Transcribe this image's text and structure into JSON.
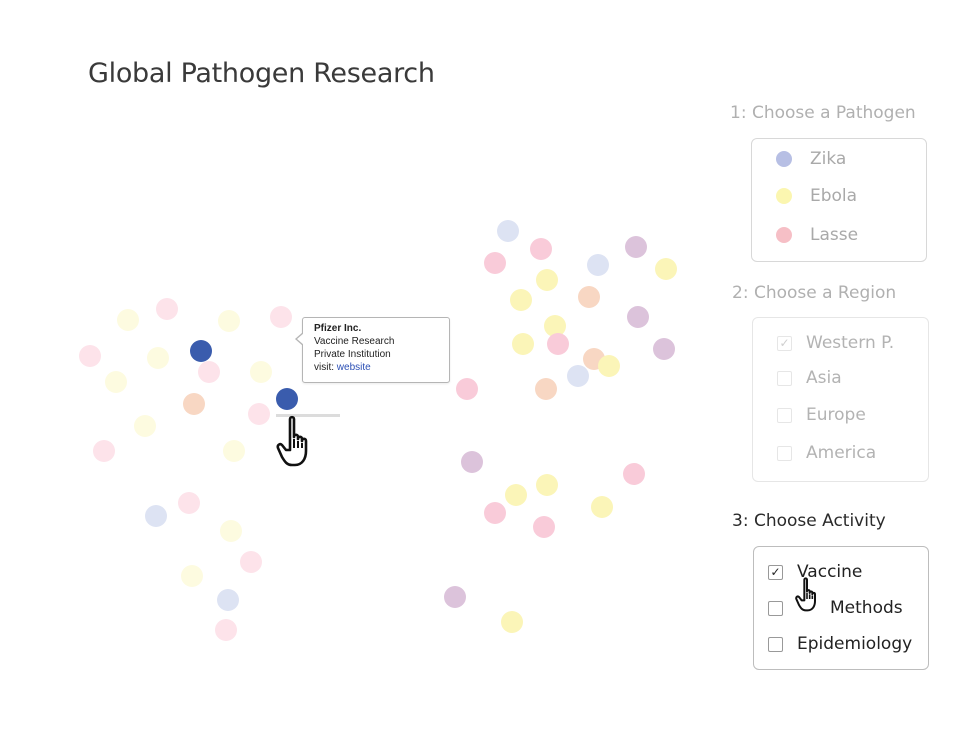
{
  "title": "Global Pathogen Research",
  "tooltip": {
    "name": "Pfizer Inc.",
    "line1": "Vaccine Research",
    "line2": "Private Institution",
    "visit_label": "visit:",
    "link_label": "website"
  },
  "pathogen_section": {
    "heading": "1: Choose a Pathogen",
    "items": [
      {
        "label": "Zika",
        "color": "#b7bfe4"
      },
      {
        "label": "Ebola",
        "color": "#fbf6b0"
      },
      {
        "label": "Lasse",
        "color": "#f6bfc6"
      }
    ]
  },
  "region_section": {
    "heading": "2: Choose a Region",
    "items": [
      {
        "label": "Western P.",
        "checked": true
      },
      {
        "label": "Asia",
        "checked": false
      },
      {
        "label": "Europe",
        "checked": false
      },
      {
        "label": "America",
        "checked": false
      }
    ]
  },
  "activity_section": {
    "heading": "3: Choose Activity",
    "items": [
      {
        "label": "Vaccine",
        "checked": true
      },
      {
        "label": "Methods",
        "checked": false
      },
      {
        "label": "Epidemiology",
        "checked": false
      }
    ]
  },
  "colors": {
    "highlight": "#3a5cad",
    "zika": "#dde3f3",
    "ebola": "#fdfbe0",
    "lasse": "#fde3ea",
    "ebola_strong": "#fbf5b8",
    "lasse_strong": "#f9cbd9",
    "orange": "#f8d7c3",
    "purple": "#dcc3db"
  },
  "cursor_check": "✓"
}
